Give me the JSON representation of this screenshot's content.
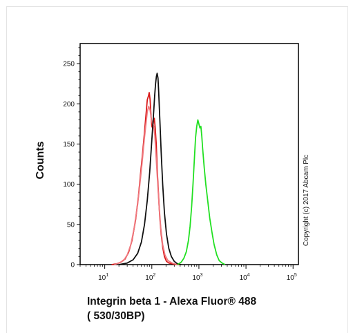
{
  "chart_data": {
    "type": "line",
    "xlabel": "Integrin beta 1 - Alexa Fluor® 488",
    "xlabel_line2": "( 530/30BP)",
    "ylabel": "Counts",
    "copyright": "Copyright (c) 2017 Abcam Plc",
    "xscale": "log",
    "xlim": [
      3,
      130000
    ],
    "ylim": [
      0,
      275
    ],
    "grid": false,
    "y_ticks": [
      0,
      50,
      100,
      150,
      200,
      250
    ],
    "x_ticks": [
      {
        "value": 10,
        "base": "10",
        "exp": "1"
      },
      {
        "value": 100,
        "base": "10",
        "exp": "2"
      },
      {
        "value": 1000,
        "base": "10",
        "exp": "3"
      },
      {
        "value": 10000,
        "base": "10",
        "exp": "4"
      },
      {
        "value": 100000,
        "base": "10",
        "exp": "5"
      }
    ],
    "series": [
      {
        "color": "#d91a1a",
        "x": [
          14,
          18,
          22,
          27,
          32,
          38,
          45,
          52,
          58,
          64,
          70,
          76,
          80,
          85,
          88,
          92,
          96,
          100,
          104,
          108,
          113,
          118,
          124,
          130,
          138,
          147,
          158,
          170,
          185,
          205,
          230,
          270,
          330,
          400
        ],
        "y": [
          0,
          1,
          3,
          7,
          15,
          30,
          55,
          85,
          115,
          140,
          165,
          190,
          205,
          210,
          214,
          205,
          185,
          172,
          170,
          178,
          182,
          170,
          150,
          120,
          90,
          60,
          38,
          22,
          10,
          4,
          2,
          1,
          0,
          0
        ]
      },
      {
        "color": "#f07a80",
        "x": [
          16,
          20,
          25,
          30,
          36,
          42,
          50,
          57,
          63,
          69,
          75,
          80,
          86,
          92,
          98,
          104,
          110,
          116,
          123,
          132,
          143,
          155,
          170,
          190,
          220,
          270,
          350
        ],
        "y": [
          0,
          2,
          5,
          12,
          25,
          45,
          75,
          105,
          130,
          155,
          175,
          190,
          197,
          192,
          180,
          175,
          172,
          160,
          135,
          105,
          72,
          45,
          25,
          12,
          5,
          2,
          0
        ]
      },
      {
        "color": "#111111",
        "x": [
          20,
          30,
          40,
          50,
          60,
          70,
          80,
          90,
          100,
          108,
          115,
          120,
          125,
          130,
          135,
          140,
          148,
          158,
          170,
          185,
          205,
          230,
          260,
          300,
          350,
          420
        ],
        "y": [
          0,
          2,
          6,
          14,
          28,
          50,
          80,
          115,
          155,
          185,
          210,
          225,
          234,
          238,
          232,
          215,
          180,
          140,
          100,
          65,
          38,
          20,
          10,
          4,
          1,
          0
        ]
      },
      {
        "color": "#22e022",
        "x": [
          350,
          420,
          480,
          540,
          600,
          650,
          700,
          750,
          800,
          850,
          900,
          950,
          1000,
          1050,
          1100,
          1150,
          1200,
          1300,
          1400,
          1550,
          1700,
          1900,
          2100,
          2400,
          2700,
          3100,
          3600
        ],
        "y": [
          0,
          3,
          8,
          16,
          30,
          48,
          72,
          100,
          130,
          158,
          172,
          180,
          175,
          170,
          172,
          160,
          145,
          120,
          100,
          78,
          58,
          40,
          25,
          12,
          5,
          2,
          0
        ]
      }
    ]
  }
}
